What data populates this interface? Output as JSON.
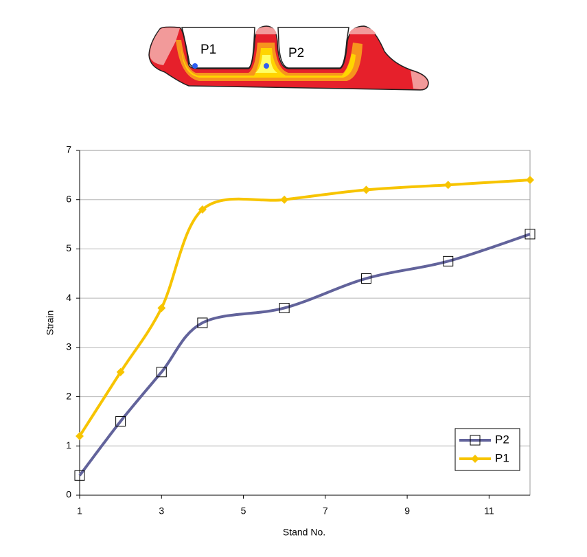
{
  "chart_data": {
    "type": "line",
    "x_label": "Stand No.",
    "y_label": "Strain",
    "x": [
      1,
      2,
      3,
      4,
      6,
      8,
      10,
      12
    ],
    "series": [
      {
        "name": "P2",
        "color": "#62639b",
        "marker": "square",
        "values": [
          0.4,
          1.5,
          2.5,
          3.5,
          3.8,
          4.4,
          4.75,
          5.3
        ]
      },
      {
        "name": "P1",
        "color": "#f7c400",
        "marker": "diamond",
        "values": [
          1.2,
          2.5,
          3.8,
          5.8,
          6.0,
          6.2,
          6.3,
          6.4
        ]
      }
    ],
    "xlim": [
      1,
      12
    ],
    "xticks": [
      1,
      3,
      5,
      7,
      9,
      11
    ],
    "ylim": [
      0,
      7
    ],
    "yticks": [
      0,
      1,
      2,
      3,
      4,
      5,
      6,
      7
    ],
    "grid": true,
    "smooth": true,
    "legend": "lower right"
  }
}
